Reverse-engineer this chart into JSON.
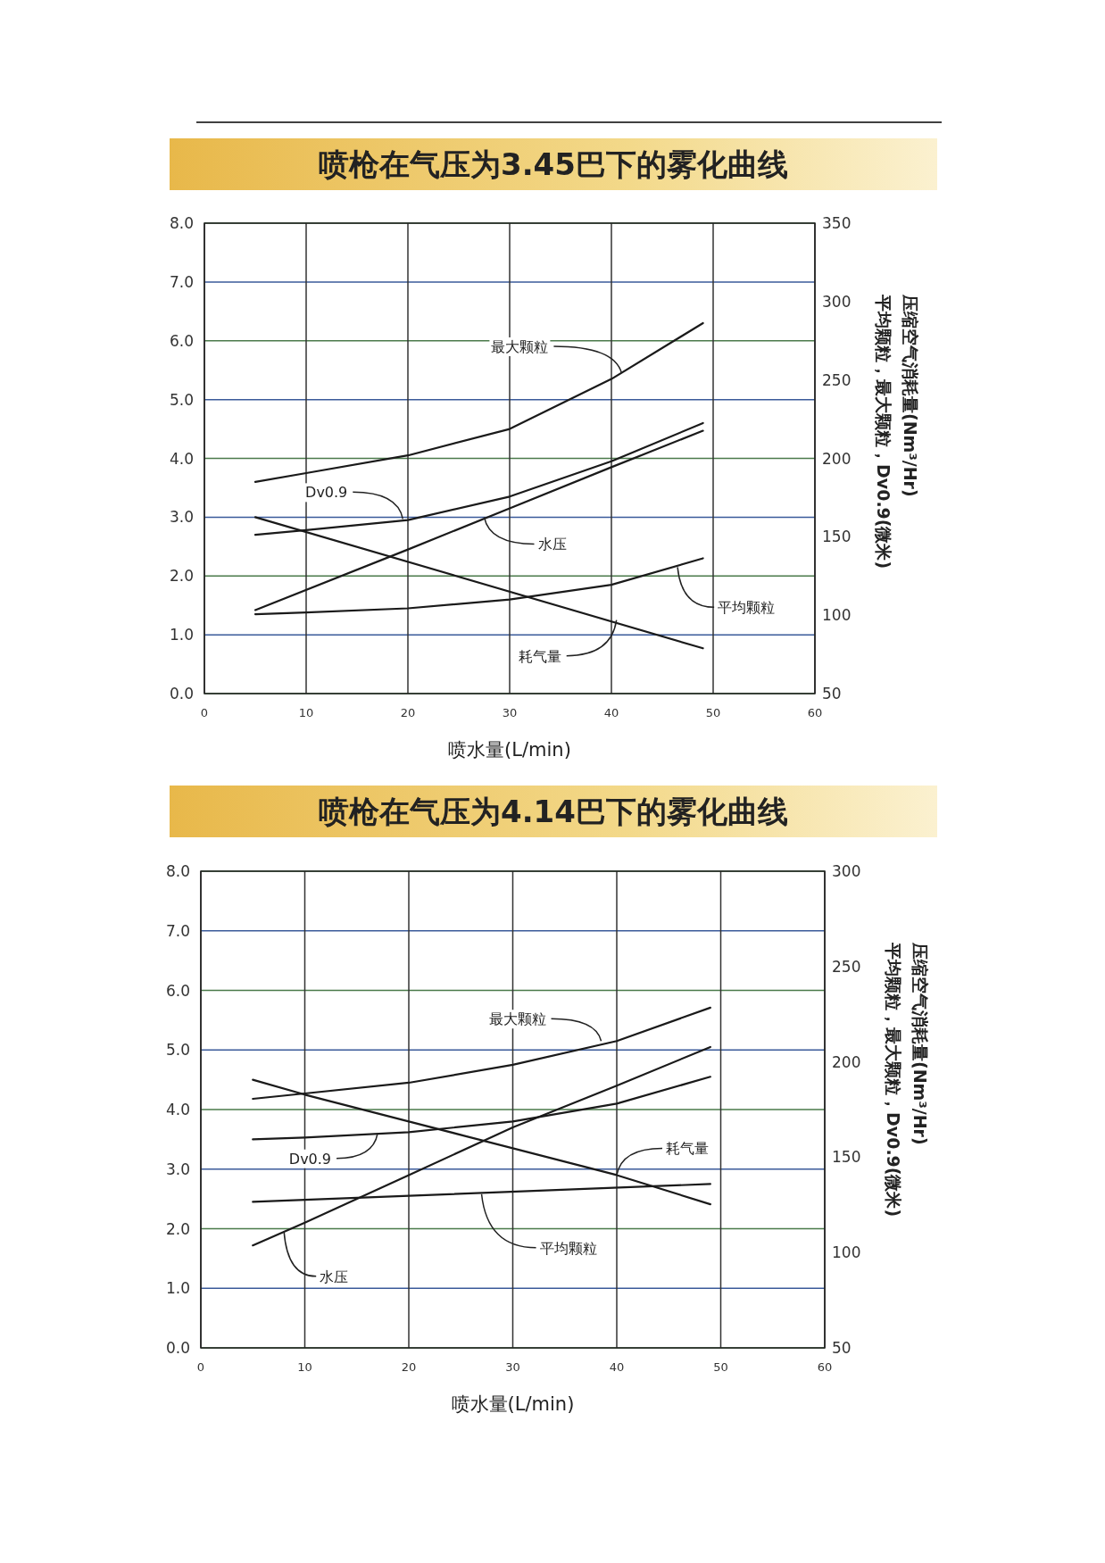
{
  "chart_data": [
    {
      "type": "line",
      "title": "喷枪在气压为3.45巴下的雾化曲线",
      "xlabel": "喷水量(L/min)",
      "y2label": "压缩空气消耗量(Nm³/Hr)\n平均颗粒，最大颗粒，Dv0.9(微米)",
      "xlim": [
        0,
        60
      ],
      "xticks": [
        0,
        10,
        20,
        30,
        40,
        50,
        60
      ],
      "ylim": [
        0,
        8
      ],
      "yticks": [
        {
          "value": 0,
          "label": "0.0"
        },
        {
          "value": 1,
          "label": "1.0"
        },
        {
          "value": 2,
          "label": "2.0"
        },
        {
          "value": 3,
          "label": "3.0"
        },
        {
          "value": 4,
          "label": "4.0"
        },
        {
          "value": 5,
          "label": "5.0"
        },
        {
          "value": 6,
          "label": "6.0"
        },
        {
          "value": 7,
          "label": "7.0"
        },
        {
          "value": 8,
          "label": "8.0"
        }
      ],
      "y2lim": [
        50,
        350
      ],
      "y2ticks": [
        50,
        100,
        150,
        200,
        250,
        300,
        350
      ],
      "grid": true,
      "marker": "none",
      "line_style": "solid",
      "series": [
        {
          "color": "#1a1a1a",
          "x": [
            5,
            10,
            20,
            30,
            40,
            49
          ],
          "values": [
            3.6,
            3.75,
            4.05,
            4.5,
            5.35,
            6.3
          ]
        },
        {
          "color": "#1a1a1a",
          "x": [
            5,
            10,
            20,
            30,
            40,
            49
          ],
          "values": [
            2.7,
            2.78,
            2.95,
            3.35,
            3.95,
            4.6
          ]
        },
        {
          "color": "#1a1a1a",
          "x": [
            5,
            20,
            30,
            40,
            49
          ],
          "values": [
            1.42,
            2.45,
            3.15,
            3.85,
            4.47
          ]
        },
        {
          "color": "#1a1a1a",
          "x": [
            5,
            10,
            20,
            30,
            40,
            49
          ],
          "values": [
            1.35,
            1.38,
            1.45,
            1.6,
            1.85,
            2.3
          ]
        },
        {
          "color": "#1a1a1a",
          "x": [
            5,
            49
          ],
          "values": [
            3.0,
            0.77
          ]
        }
      ],
      "annotations": [
        {
          "text": "最大颗粒",
          "x": 41,
          "y": 5.45
        },
        {
          "text": "Dv0.9",
          "x": 19.5,
          "y": 2.97
        },
        {
          "text": "水压",
          "x": 27.5,
          "y": 3.0
        },
        {
          "text": "平均颗粒",
          "x": 46.5,
          "y": 2.15
        },
        {
          "text": "耗气量",
          "x": 40.5,
          "y": 1.25
        }
      ]
    },
    {
      "type": "line",
      "title": "喷枪在气压为4.14巴下的雾化曲线",
      "xlabel": "喷水量(L/min)",
      "y2label": "压缩空气消耗量(Nm³/Hr)\n平均颗粒，最大颗粒，Dv0.9(微米)",
      "xlim": [
        0,
        60
      ],
      "xticks": [
        0,
        10,
        20,
        30,
        40,
        50,
        60
      ],
      "ylim": [
        0,
        8
      ],
      "yticks": [
        {
          "value": 0,
          "label": "0.0"
        },
        {
          "value": 1,
          "label": "1.0"
        },
        {
          "value": 2,
          "label": "2.0"
        },
        {
          "value": 3,
          "label": "3.0"
        },
        {
          "value": 4,
          "label": "4.0"
        },
        {
          "value": 5,
          "label": "5.0"
        },
        {
          "value": 6,
          "label": "6.0"
        },
        {
          "value": 7,
          "label": "7.0"
        },
        {
          "value": 8,
          "label": "8.0"
        }
      ],
      "y2lim": [
        50,
        300
      ],
      "y2ticks": [
        50,
        100,
        150,
        200,
        250,
        300
      ],
      "grid": true,
      "marker": "none",
      "line_style": "solid",
      "series": [
        {
          "color": "#1a1a1a",
          "x": [
            5,
            10,
            20,
            30,
            40,
            49
          ],
          "values": [
            4.18,
            4.27,
            4.45,
            4.75,
            5.15,
            5.71
          ]
        },
        {
          "color": "#1a1a1a",
          "x": [
            5,
            10,
            20,
            30,
            40,
            49
          ],
          "values": [
            1.72,
            2.1,
            2.9,
            3.7,
            4.4,
            5.05
          ]
        },
        {
          "color": "#1a1a1a",
          "x": [
            5,
            10,
            20,
            30,
            40,
            49
          ],
          "values": [
            3.5,
            3.53,
            3.62,
            3.8,
            4.1,
            4.55
          ]
        },
        {
          "color": "#1a1a1a",
          "x": [
            5,
            49
          ],
          "values": [
            2.45,
            2.75
          ]
        },
        {
          "color": "#1a1a1a",
          "x": [
            5,
            10,
            20,
            30,
            40,
            49
          ],
          "values": [
            4.5,
            4.25,
            3.8,
            3.35,
            2.9,
            2.41
          ]
        }
      ],
      "annotations": [
        {
          "text": "最大颗粒",
          "x": 38.5,
          "y": 5.15
        },
        {
          "text": "Dv0.9",
          "x": 17,
          "y": 3.6
        },
        {
          "text": "耗气量",
          "x": 40,
          "y": 2.9
        },
        {
          "text": "平均颗粒",
          "x": 27,
          "y": 2.58
        },
        {
          "text": "水压",
          "x": 8,
          "y": 1.95
        }
      ]
    }
  ]
}
